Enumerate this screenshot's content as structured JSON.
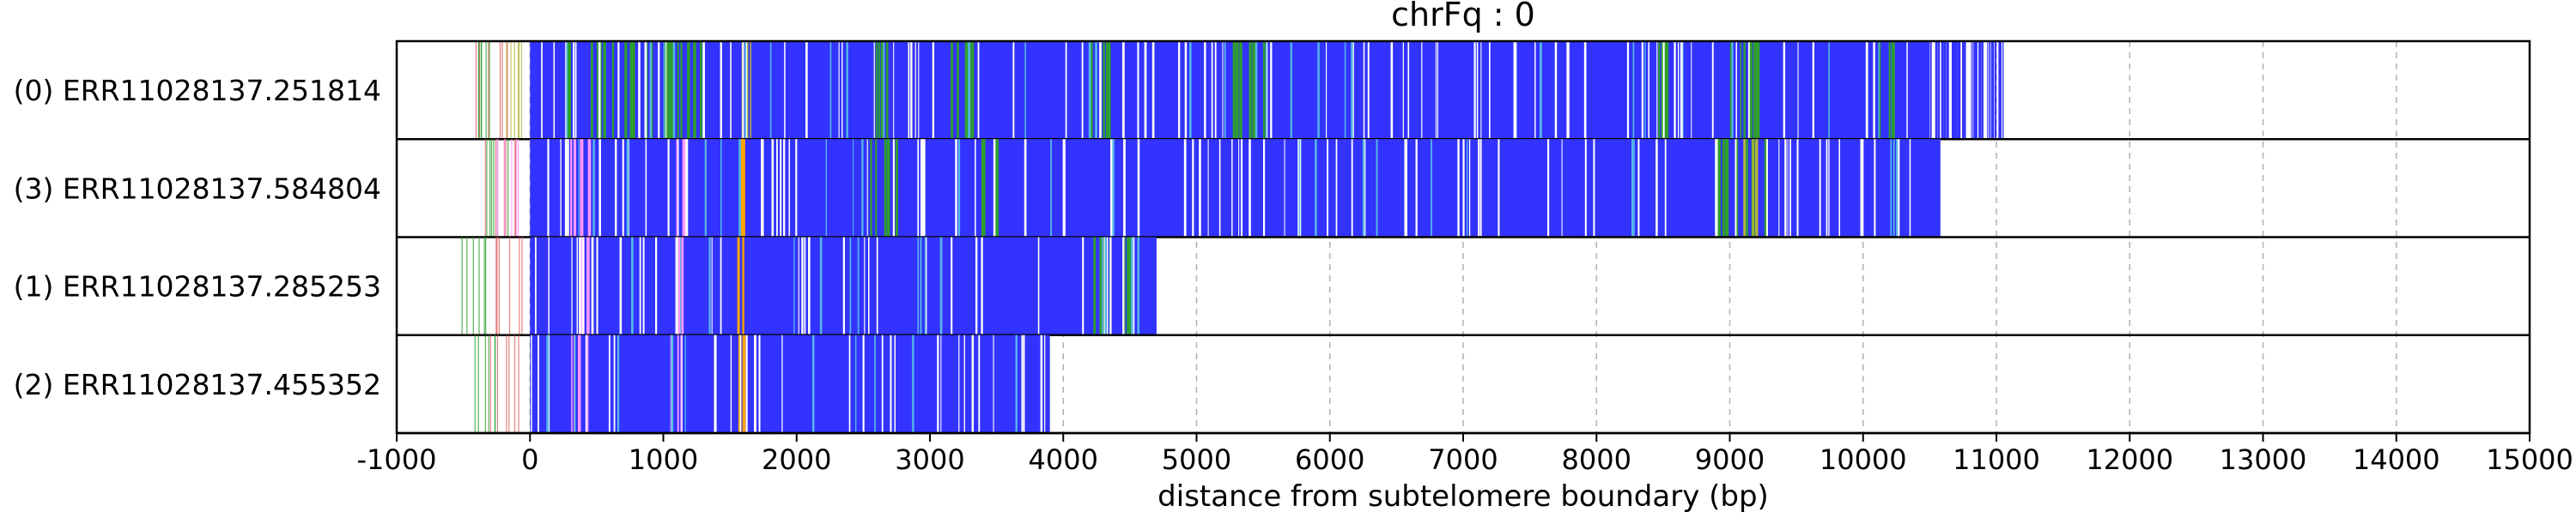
{
  "chart_data": {
    "type": "bar",
    "title": "chrFq : 0",
    "xlabel": "distance from subtelomere boundary (bp)",
    "ylabel": "",
    "xlim": [
      -1000,
      15000
    ],
    "xticks": [
      "-1000",
      "0",
      "1000",
      "2000",
      "3000",
      "4000",
      "5000",
      "6000",
      "7000",
      "8000",
      "9000",
      "10000",
      "11000",
      "12000",
      "13000",
      "14000",
      "15000"
    ],
    "grid": "x-dashed",
    "colors": {
      "main": "#3333ff",
      "green": "#2e9e2e",
      "olive": "#b5b53a",
      "cyan": "#55b8e8",
      "pink": "#ff99ff",
      "orange": "#ffa500",
      "red": "#e06060",
      "white": "#ffffff",
      "grid": "#b0b0b0"
    },
    "reads": [
      {
        "label": "(0) ERR11028137.251814",
        "start": 0,
        "end": 10500,
        "tail_end": 11080,
        "scatter": [
          [
            -520,
            -30,
            "red"
          ],
          [
            -420,
            -300,
            "green"
          ],
          [
            -200,
            -40,
            "olive"
          ]
        ],
        "bands": [
          [
            250,
            300,
            "green"
          ],
          [
            350,
            1300,
            "green"
          ],
          [
            1550,
            1700,
            "olive"
          ],
          [
            2550,
            2700,
            "green"
          ],
          [
            3150,
            3400,
            "green"
          ],
          [
            4200,
            4350,
            "green"
          ],
          [
            5250,
            5500,
            "green"
          ],
          [
            8450,
            8600,
            "green"
          ],
          [
            9000,
            9250,
            "green"
          ],
          [
            10050,
            10300,
            "green"
          ]
        ]
      },
      {
        "label": "(3) ERR11028137.584804",
        "start": 0,
        "end": 10580,
        "tail_end": 10580,
        "scatter": [
          [
            -450,
            -20,
            "red"
          ],
          [
            -350,
            -150,
            "green"
          ],
          [
            -250,
            -80,
            "pink"
          ]
        ],
        "bands": [
          [
            300,
            450,
            "pink"
          ],
          [
            1050,
            1150,
            "pink"
          ],
          [
            1550,
            1600,
            "orange"
          ],
          [
            2500,
            2750,
            "green"
          ],
          [
            3300,
            3500,
            "green"
          ],
          [
            8850,
            9300,
            "green"
          ],
          [
            9050,
            9200,
            "olive"
          ]
        ]
      },
      {
        "label": "(1) ERR11028137.285253",
        "start": 0,
        "end": 4700,
        "tail_end": 4700,
        "scatter": [
          [
            -520,
            -320,
            "green"
          ],
          [
            -300,
            -40,
            "red"
          ]
        ],
        "bands": [
          [
            300,
            450,
            "pink"
          ],
          [
            1050,
            1150,
            "pink"
          ],
          [
            1550,
            1600,
            "orange"
          ],
          [
            4180,
            4500,
            "green"
          ]
        ]
      },
      {
        "label": "(2) ERR11028137.455352",
        "start": 0,
        "end": 3900,
        "tail_end": 3900,
        "scatter": [
          [
            -550,
            -30,
            "red"
          ],
          [
            -420,
            -200,
            "green"
          ]
        ],
        "bands": [
          [
            300,
            450,
            "pink"
          ],
          [
            1050,
            1150,
            "pink"
          ],
          [
            1550,
            1610,
            "orange"
          ]
        ]
      }
    ]
  }
}
